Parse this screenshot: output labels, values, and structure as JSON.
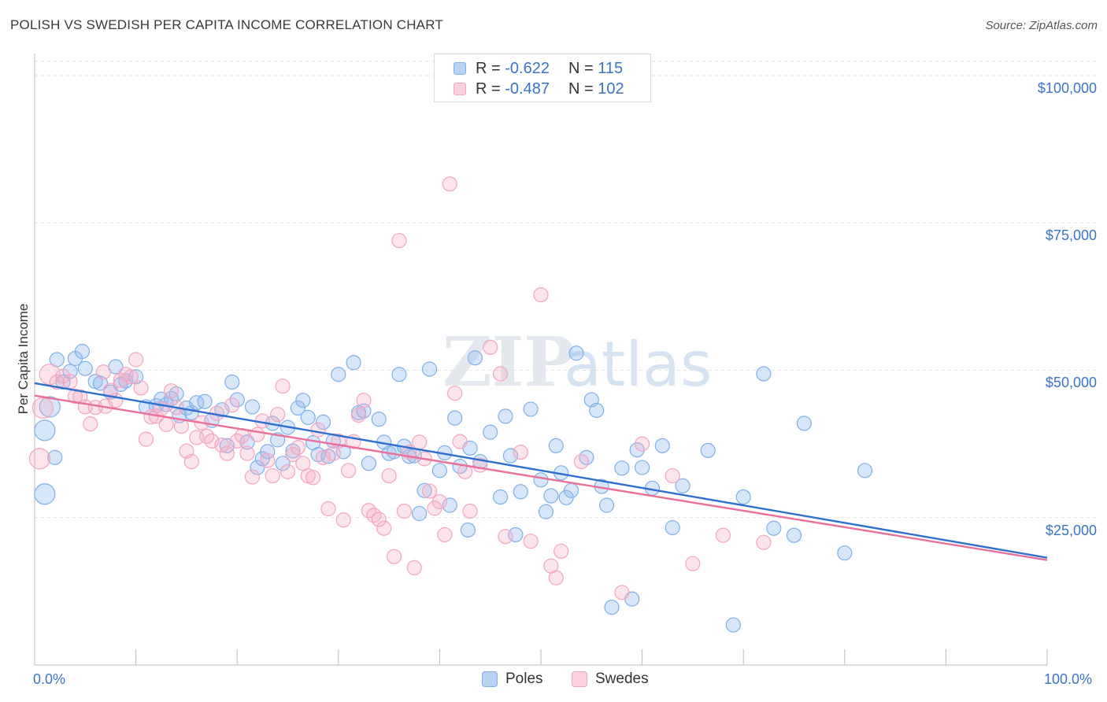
{
  "title": "POLISH VS SWEDISH PER CAPITA INCOME CORRELATION CHART",
  "source": "Source: ZipAtlas.com",
  "watermark": {
    "zip": "ZIP",
    "atlas": "atlas"
  },
  "legend": {
    "rows": [
      {
        "r_label": "R =",
        "r_value": "-0.622",
        "n_label": "N =",
        "n_value": "115"
      },
      {
        "r_label": "R =",
        "r_value": "-0.487",
        "n_label": "N =",
        "n_value": "102"
      }
    ]
  },
  "chart_data": {
    "type": "scatter",
    "title": "POLISH VS SWEDISH PER CAPITA INCOME CORRELATION CHART",
    "xlabel": "",
    "ylabel": "Per Capita Income",
    "xlim": [
      0,
      100
    ],
    "ylim": [
      0,
      105000
    ],
    "x_tick_labels": {
      "min": "0.0%",
      "max": "100.0%"
    },
    "y_ticks": [
      {
        "value": 25000,
        "label": "$25,000"
      },
      {
        "value": 50000,
        "label": "$50,000"
      },
      {
        "value": 75000,
        "label": "$75,000"
      },
      {
        "value": 100000,
        "label": "$100,000"
      }
    ],
    "grid": true,
    "legend_position": "top-center",
    "series": [
      {
        "name": "Poles",
        "color": "#7fb0e8",
        "line_color": "#2f6fd0",
        "trend": {
          "x0": 0,
          "y0": 47800,
          "x1": 100,
          "y1": 18200
        },
        "points": [
          [
            1,
            39800
          ],
          [
            1,
            29000
          ],
          [
            1.5,
            43800
          ],
          [
            2,
            35200
          ],
          [
            2.2,
            51800
          ],
          [
            2.8,
            48000
          ],
          [
            3.5,
            49800
          ],
          [
            4,
            52000
          ],
          [
            4.7,
            53200
          ],
          [
            5,
            50300
          ],
          [
            6,
            48100
          ],
          [
            6.5,
            47800
          ],
          [
            7.5,
            46300
          ],
          [
            8,
            50600
          ],
          [
            8.5,
            47600
          ],
          [
            9,
            48200
          ],
          [
            10,
            48900
          ],
          [
            11,
            43800
          ],
          [
            12,
            44000
          ],
          [
            12.5,
            45100
          ],
          [
            13,
            44200
          ],
          [
            13.5,
            45200
          ],
          [
            14,
            46000
          ],
          [
            14.3,
            42300
          ],
          [
            15,
            43600
          ],
          [
            15.5,
            42800
          ],
          [
            16,
            44500
          ],
          [
            16.8,
            44700
          ],
          [
            17.5,
            41500
          ],
          [
            18.5,
            43300
          ],
          [
            19,
            37200
          ],
          [
            19.5,
            48000
          ],
          [
            20,
            45000
          ],
          [
            21,
            37800
          ],
          [
            21.5,
            43800
          ],
          [
            22,
            33500
          ],
          [
            22.5,
            35000
          ],
          [
            23,
            36200
          ],
          [
            23.5,
            41000
          ],
          [
            24,
            38200
          ],
          [
            24.5,
            34200
          ],
          [
            25,
            40300
          ],
          [
            25.5,
            36300
          ],
          [
            26,
            43600
          ],
          [
            26.5,
            44900
          ],
          [
            27,
            42000
          ],
          [
            27.5,
            37700
          ],
          [
            28,
            35700
          ],
          [
            28.5,
            41200
          ],
          [
            29,
            35400
          ],
          [
            29.5,
            38000
          ],
          [
            30,
            49300
          ],
          [
            30.5,
            36200
          ],
          [
            31.5,
            51300
          ],
          [
            32,
            42800
          ],
          [
            32.5,
            43100
          ],
          [
            33,
            34200
          ],
          [
            34,
            41700
          ],
          [
            34.5,
            37800
          ],
          [
            35,
            35900
          ],
          [
            35.5,
            36200
          ],
          [
            36,
            49300
          ],
          [
            36.5,
            37100
          ],
          [
            37,
            35400
          ],
          [
            37.5,
            35500
          ],
          [
            38,
            25700
          ],
          [
            38.5,
            29600
          ],
          [
            39,
            50200
          ],
          [
            40,
            33000
          ],
          [
            40.5,
            36000
          ],
          [
            41,
            27100
          ],
          [
            41.5,
            41900
          ],
          [
            42,
            33700
          ],
          [
            42.8,
            22900
          ],
          [
            43,
            36800
          ],
          [
            43.5,
            52100
          ],
          [
            44,
            34500
          ],
          [
            45,
            39500
          ],
          [
            46,
            28500
          ],
          [
            46.5,
            42200
          ],
          [
            47,
            35500
          ],
          [
            47.5,
            22100
          ],
          [
            48,
            29400
          ],
          [
            49,
            43400
          ],
          [
            50,
            31400
          ],
          [
            50.5,
            26000
          ],
          [
            51,
            28700
          ],
          [
            51.5,
            37200
          ],
          [
            52,
            32600
          ],
          [
            52.5,
            28400
          ],
          [
            53,
            29600
          ],
          [
            53.5,
            52900
          ],
          [
            54.5,
            35200
          ],
          [
            55,
            45000
          ],
          [
            55.5,
            43200
          ],
          [
            56,
            30300
          ],
          [
            56.5,
            27100
          ],
          [
            57,
            9800
          ],
          [
            58,
            33400
          ],
          [
            59,
            11200
          ],
          [
            59.5,
            36500
          ],
          [
            60,
            33500
          ],
          [
            61,
            30000
          ],
          [
            62,
            37200
          ],
          [
            63,
            23300
          ],
          [
            64,
            30400
          ],
          [
            66.5,
            36400
          ],
          [
            69,
            6800
          ],
          [
            70,
            28500
          ],
          [
            72,
            49400
          ],
          [
            73,
            23200
          ],
          [
            75,
            22000
          ],
          [
            76,
            41000
          ],
          [
            80,
            19000
          ],
          [
            82,
            33000
          ]
        ]
      },
      {
        "name": "Swedes",
        "color": "#f4a4c0",
        "line_color": "#e8709a",
        "trend": {
          "x0": 0,
          "y0": 45700,
          "x1": 100,
          "y1": 17800
        },
        "points": [
          [
            0.5,
            35000
          ],
          [
            0.8,
            43600
          ],
          [
            1.5,
            49300
          ],
          [
            2.2,
            48000
          ],
          [
            2.8,
            49000
          ],
          [
            3.5,
            48100
          ],
          [
            4,
            45600
          ],
          [
            4.5,
            45500
          ],
          [
            5,
            43800
          ],
          [
            5.5,
            40900
          ],
          [
            6,
            43700
          ],
          [
            6.8,
            49700
          ],
          [
            7,
            43900
          ],
          [
            7.5,
            46600
          ],
          [
            8,
            44900
          ],
          [
            8.5,
            48300
          ],
          [
            9,
            49300
          ],
          [
            9.5,
            48900
          ],
          [
            10,
            51800
          ],
          [
            10.5,
            47000
          ],
          [
            11,
            38300
          ],
          [
            11.5,
            42100
          ],
          [
            12,
            42200
          ],
          [
            12.5,
            43500
          ],
          [
            13,
            40800
          ],
          [
            13.5,
            46500
          ],
          [
            14,
            43700
          ],
          [
            14.5,
            40500
          ],
          [
            15,
            36300
          ],
          [
            15.5,
            34500
          ],
          [
            16,
            38600
          ],
          [
            16.5,
            41100
          ],
          [
            17,
            38800
          ],
          [
            17.5,
            38000
          ],
          [
            18,
            42700
          ],
          [
            18.5,
            37300
          ],
          [
            19,
            35900
          ],
          [
            19.5,
            44100
          ],
          [
            20,
            38000
          ],
          [
            20.5,
            38900
          ],
          [
            21,
            35900
          ],
          [
            21.5,
            31900
          ],
          [
            22,
            39100
          ],
          [
            22.5,
            41400
          ],
          [
            23,
            34700
          ],
          [
            23.5,
            32100
          ],
          [
            24,
            42500
          ],
          [
            24.5,
            47300
          ],
          [
            25,
            32800
          ],
          [
            25.5,
            35700
          ],
          [
            26,
            36900
          ],
          [
            26.5,
            34200
          ],
          [
            27,
            32100
          ],
          [
            27.5,
            31800
          ],
          [
            28,
            39900
          ],
          [
            28.5,
            35200
          ],
          [
            29,
            26500
          ],
          [
            29.5,
            35900
          ],
          [
            30,
            38000
          ],
          [
            30.5,
            24600
          ],
          [
            31,
            33000
          ],
          [
            31.5,
            37900
          ],
          [
            32,
            42400
          ],
          [
            32.5,
            44900
          ],
          [
            33,
            26200
          ],
          [
            33.5,
            25400
          ],
          [
            34,
            24700
          ],
          [
            34.5,
            23200
          ],
          [
            35,
            32100
          ],
          [
            35.5,
            18400
          ],
          [
            36,
            72000
          ],
          [
            36.5,
            26100
          ],
          [
            37,
            36100
          ],
          [
            37.5,
            16500
          ],
          [
            38,
            37800
          ],
          [
            38.5,
            35000
          ],
          [
            39,
            29500
          ],
          [
            39.5,
            26600
          ],
          [
            40,
            27700
          ],
          [
            40.5,
            22100
          ],
          [
            41,
            81600
          ],
          [
            41.5,
            46100
          ],
          [
            42,
            37900
          ],
          [
            42.5,
            32800
          ],
          [
            43,
            26100
          ],
          [
            44,
            33900
          ],
          [
            45,
            53900
          ],
          [
            46,
            49400
          ],
          [
            46.5,
            21800
          ],
          [
            48,
            36100
          ],
          [
            49,
            21000
          ],
          [
            50,
            62800
          ],
          [
            51,
            16800
          ],
          [
            51.5,
            14800
          ],
          [
            52,
            19300
          ],
          [
            54,
            34500
          ],
          [
            58,
            12300
          ],
          [
            60,
            37500
          ],
          [
            63,
            32100
          ],
          [
            65,
            17200
          ],
          [
            68,
            22000
          ],
          [
            72,
            20800
          ]
        ]
      }
    ]
  }
}
